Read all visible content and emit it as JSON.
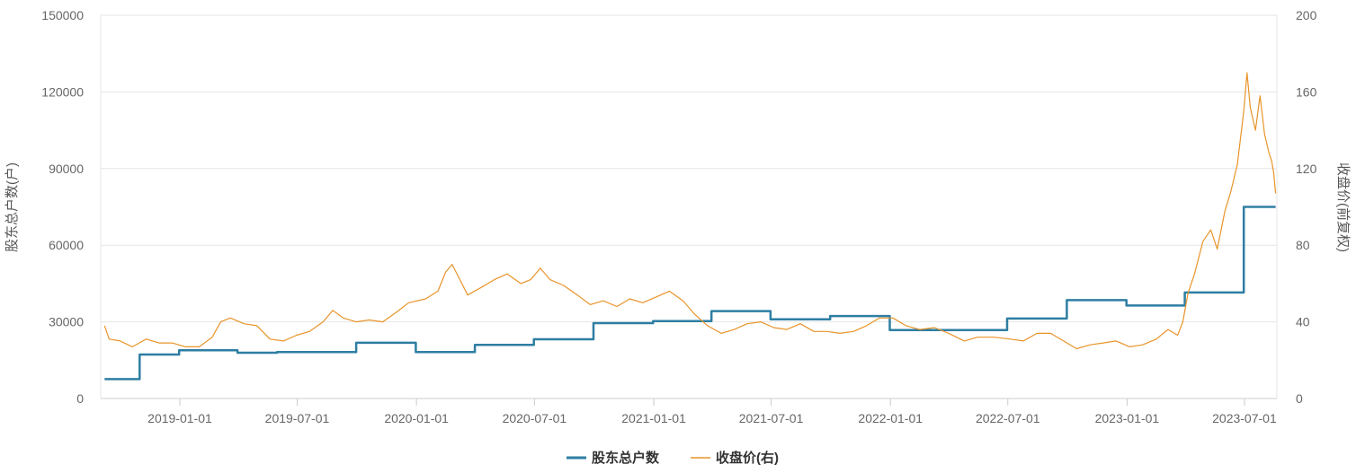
{
  "chart_data": {
    "type": "line",
    "y_left": {
      "label": "股东总户数(户)",
      "ticks": [
        "0",
        "30000",
        "60000",
        "90000",
        "120000",
        "150000"
      ],
      "ylim": [
        0,
        150000
      ]
    },
    "y_right": {
      "label": "收盘价(前复权)",
      "ticks": [
        "0",
        "40",
        "80",
        "120",
        "160",
        "200"
      ],
      "ylim": [
        0,
        200
      ]
    },
    "x_range": [
      "2018-09-01",
      "2023-08-20"
    ],
    "x_ticks": [
      "2019-01-01",
      "2019-07-01",
      "2020-01-01",
      "2020-07-01",
      "2021-01-01",
      "2021-07-01",
      "2022-01-01",
      "2022-07-01",
      "2023-01-01",
      "2023-07-01"
    ],
    "grid": true,
    "legend_position": "bottom",
    "series": [
      {
        "name": "股东总户数",
        "axis": "left",
        "color": "#2e7ea3",
        "step": true,
        "points": [
          [
            "2018-09-07",
            7600
          ],
          [
            "2018-10-31",
            17200
          ],
          [
            "2018-12-31",
            18900
          ],
          [
            "2019-03-31",
            17900
          ],
          [
            "2019-05-31",
            18200
          ],
          [
            "2019-09-30",
            21800
          ],
          [
            "2019-12-31",
            18200
          ],
          [
            "2020-03-31",
            21000
          ],
          [
            "2020-06-30",
            23200
          ],
          [
            "2020-09-30",
            29500
          ],
          [
            "2020-12-31",
            30300
          ],
          [
            "2021-03-31",
            34200
          ],
          [
            "2021-06-30",
            31000
          ],
          [
            "2021-09-30",
            32300
          ],
          [
            "2021-12-31",
            26800
          ],
          [
            "2022-06-30",
            31300
          ],
          [
            "2022-09-30",
            38500
          ],
          [
            "2022-12-31",
            36400
          ],
          [
            "2023-03-31",
            41500
          ],
          [
            "2023-06-30",
            75000
          ],
          [
            "2023-08-18",
            75000
          ]
        ]
      },
      {
        "name": "收盘价(右)",
        "axis": "right",
        "color": "#e8942a",
        "points": [
          [
            "2018-09-07",
            38
          ],
          [
            "2018-09-14",
            31
          ],
          [
            "2018-10-01",
            30
          ],
          [
            "2018-10-20",
            27
          ],
          [
            "2018-11-10",
            31
          ],
          [
            "2018-11-30",
            29
          ],
          [
            "2018-12-20",
            29
          ],
          [
            "2019-01-10",
            27
          ],
          [
            "2019-01-31",
            27
          ],
          [
            "2019-02-20",
            32
          ],
          [
            "2019-03-05",
            40
          ],
          [
            "2019-03-20",
            42
          ],
          [
            "2019-04-10",
            39
          ],
          [
            "2019-04-30",
            38
          ],
          [
            "2019-05-20",
            31
          ],
          [
            "2019-06-10",
            30
          ],
          [
            "2019-06-30",
            33
          ],
          [
            "2019-07-20",
            35
          ],
          [
            "2019-08-10",
            40
          ],
          [
            "2019-08-25",
            46
          ],
          [
            "2019-09-10",
            42
          ],
          [
            "2019-09-30",
            40
          ],
          [
            "2019-10-20",
            41
          ],
          [
            "2019-11-10",
            40
          ],
          [
            "2019-12-01",
            45
          ],
          [
            "2019-12-20",
            50
          ],
          [
            "2020-01-15",
            52
          ],
          [
            "2020-02-03",
            56
          ],
          [
            "2020-02-15",
            66
          ],
          [
            "2020-02-25",
            70
          ],
          [
            "2020-03-05",
            64
          ],
          [
            "2020-03-20",
            54
          ],
          [
            "2020-04-10",
            58
          ],
          [
            "2020-04-30",
            62
          ],
          [
            "2020-05-20",
            65
          ],
          [
            "2020-06-10",
            60
          ],
          [
            "2020-06-25",
            62
          ],
          [
            "2020-07-10",
            68
          ],
          [
            "2020-07-25",
            62
          ],
          [
            "2020-08-15",
            59
          ],
          [
            "2020-09-05",
            54
          ],
          [
            "2020-09-25",
            49
          ],
          [
            "2020-10-15",
            51
          ],
          [
            "2020-11-05",
            48
          ],
          [
            "2020-11-25",
            52
          ],
          [
            "2020-12-15",
            50
          ],
          [
            "2021-01-05",
            53
          ],
          [
            "2021-01-25",
            56
          ],
          [
            "2021-02-15",
            51
          ],
          [
            "2021-03-05",
            44
          ],
          [
            "2021-03-25",
            38
          ],
          [
            "2021-04-15",
            34
          ],
          [
            "2021-05-05",
            36
          ],
          [
            "2021-05-25",
            39
          ],
          [
            "2021-06-15",
            40
          ],
          [
            "2021-07-05",
            37
          ],
          [
            "2021-07-25",
            36
          ],
          [
            "2021-08-15",
            39
          ],
          [
            "2021-09-05",
            35
          ],
          [
            "2021-09-25",
            35
          ],
          [
            "2021-10-15",
            34
          ],
          [
            "2021-11-05",
            35
          ],
          [
            "2021-11-25",
            38
          ],
          [
            "2021-12-15",
            42
          ],
          [
            "2022-01-05",
            42
          ],
          [
            "2022-01-25",
            38
          ],
          [
            "2022-02-15",
            36
          ],
          [
            "2022-03-10",
            37
          ],
          [
            "2022-04-01",
            34
          ],
          [
            "2022-04-25",
            30
          ],
          [
            "2022-05-15",
            32
          ],
          [
            "2022-06-10",
            32
          ],
          [
            "2022-07-05",
            31
          ],
          [
            "2022-07-25",
            30
          ],
          [
            "2022-08-15",
            34
          ],
          [
            "2022-09-05",
            34
          ],
          [
            "2022-09-25",
            30
          ],
          [
            "2022-10-15",
            26
          ],
          [
            "2022-11-05",
            28
          ],
          [
            "2022-11-25",
            29
          ],
          [
            "2022-12-15",
            30
          ],
          [
            "2023-01-05",
            27
          ],
          [
            "2023-01-25",
            28
          ],
          [
            "2023-02-15",
            31
          ],
          [
            "2023-03-05",
            36
          ],
          [
            "2023-03-20",
            33
          ],
          [
            "2023-03-28",
            40
          ],
          [
            "2023-04-05",
            55
          ],
          [
            "2023-04-15",
            65
          ],
          [
            "2023-04-28",
            82
          ],
          [
            "2023-05-10",
            88
          ],
          [
            "2023-05-20",
            78
          ],
          [
            "2023-06-01",
            98
          ],
          [
            "2023-06-10",
            108
          ],
          [
            "2023-06-20",
            122
          ],
          [
            "2023-06-30",
            150
          ],
          [
            "2023-07-05",
            170
          ],
          [
            "2023-07-10",
            152
          ],
          [
            "2023-07-18",
            140
          ],
          [
            "2023-07-25",
            158
          ],
          [
            "2023-08-01",
            138
          ],
          [
            "2023-08-08",
            128
          ],
          [
            "2023-08-12",
            124
          ],
          [
            "2023-08-15",
            118
          ],
          [
            "2023-08-18",
            107
          ]
        ]
      }
    ]
  }
}
